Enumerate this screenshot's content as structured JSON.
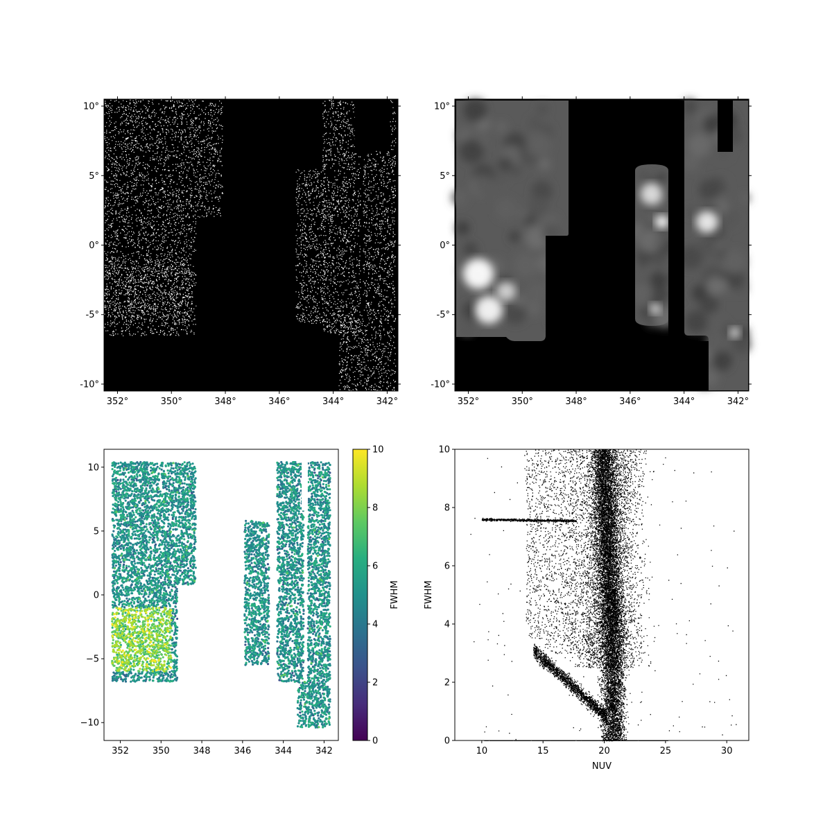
{
  "chart_data": [
    {
      "type": "heatmap",
      "panel": "top-left",
      "description_visible": "binary sky map (white points on black)",
      "x_ticks": [
        "352°",
        "350°",
        "348°",
        "346°",
        "344°",
        "342°"
      ],
      "x_tick_values": [
        352,
        350,
        348,
        346,
        344,
        342
      ],
      "xlim": [
        352.5,
        341.6
      ],
      "y_ticks": [
        "10°",
        "5°",
        "0°",
        "-5°",
        "-10°"
      ],
      "y_tick_values": [
        10,
        5,
        0,
        -5,
        -10
      ],
      "ylim": [
        -10.5,
        10.5
      ],
      "grid": false,
      "colors": {
        "background": "#000000",
        "points": "#ffffff"
      }
    },
    {
      "type": "heatmap",
      "panel": "top-right",
      "x_ticks": [
        "352°",
        "350°",
        "348°",
        "346°",
        "344°",
        "342°"
      ],
      "x_tick_values": [
        352,
        350,
        348,
        346,
        344,
        342
      ],
      "xlim": [
        352.5,
        341.6
      ],
      "y_ticks": [
        "10°",
        "5°",
        "0°",
        "-5°",
        "-10°"
      ],
      "y_tick_values": [
        10,
        5,
        0,
        -5,
        -10
      ],
      "ylim": [
        -10.5,
        10.5
      ],
      "grid": false,
      "colors": {
        "background": "#000000",
        "map": "grayscale"
      }
    },
    {
      "type": "scatter",
      "panel": "bottom-left",
      "x_ticks": [
        "352",
        "350",
        "348",
        "346",
        "344",
        "342"
      ],
      "x_tick_values": [
        352,
        350,
        348,
        346,
        344,
        342
      ],
      "xlim": [
        352.8,
        341.3
      ],
      "y_ticks": [
        "10",
        "5",
        "0",
        "−5",
        "−10"
      ],
      "y_tick_values": [
        10,
        5,
        0,
        -5,
        -10
      ],
      "ylim": [
        -11.4,
        11.4
      ],
      "colorbar": {
        "label": "FWHM",
        "ticks": [
          "0",
          "2",
          "4",
          "6",
          "8",
          "10"
        ],
        "tick_values": [
          0,
          2,
          4,
          6,
          8,
          10
        ],
        "range": [
          0,
          10
        ],
        "colormap": "viridis"
      },
      "grid": false
    },
    {
      "type": "scatter",
      "panel": "bottom-right",
      "xlabel": "NUV",
      "ylabel": "FWHM",
      "x_ticks": [
        "10",
        "15",
        "20",
        "25",
        "30"
      ],
      "x_tick_values": [
        10,
        15,
        20,
        25,
        30
      ],
      "xlim": [
        7.8,
        31.8
      ],
      "y_ticks": [
        "0",
        "2",
        "4",
        "6",
        "8",
        "10"
      ],
      "y_tick_values": [
        0,
        2,
        4,
        6,
        8,
        10
      ],
      "ylim": [
        0,
        10
      ],
      "grid": false,
      "colors": {
        "points": "#000000"
      }
    }
  ]
}
